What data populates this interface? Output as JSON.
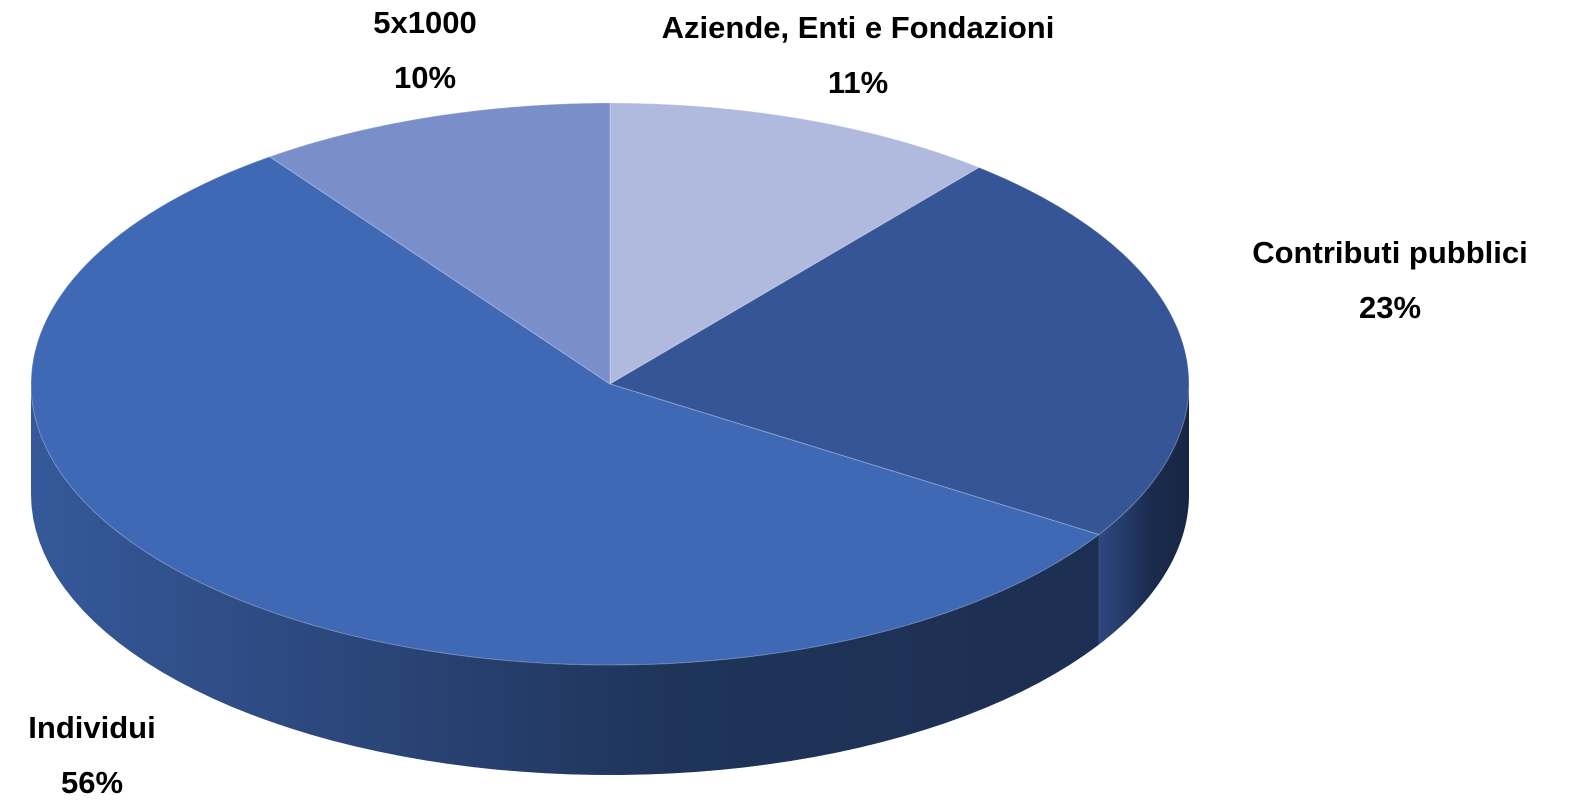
{
  "chart_data": {
    "type": "pie",
    "categories": [
      "Aziende, Enti e Fondazioni",
      "Contributi pubblici",
      "Individui",
      "5x1000"
    ],
    "values": [
      11,
      23,
      56,
      10
    ],
    "value_labels": [
      "11%",
      "23%",
      "56%",
      "10%"
    ],
    "colors": [
      "#b0bade",
      "#355597",
      "#3f68b5",
      "#7a8fca"
    ]
  }
}
